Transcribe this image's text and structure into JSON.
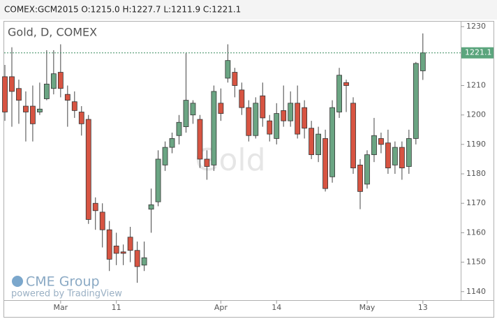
{
  "chart_data": {
    "type": "candlestick",
    "ohlc_header": "COMEX:GCM2015 O:1215.0 H:1227.7 L:1211.9 C:1221.1",
    "title": "Gold, D, COMEX",
    "watermark": "Gold",
    "logo_text": "CME Group",
    "powered_by": "powered by TradingView",
    "categories": [
      null,
      null,
      null,
      null,
      null,
      null,
      null,
      null,
      "Mar",
      null,
      null,
      null,
      null,
      null,
      null,
      null,
      "11",
      null,
      null,
      null,
      null,
      null,
      null,
      null,
      null,
      null,
      null,
      null,
      null,
      null,
      null,
      "Apr",
      null,
      null,
      null,
      null,
      null,
      null,
      null,
      "14",
      null,
      null,
      null,
      null,
      null,
      null,
      null,
      null,
      null,
      null,
      null,
      null,
      "May",
      null,
      null,
      null,
      null,
      null,
      null,
      null,
      "13"
    ],
    "open": [
      1213,
      1213,
      1209,
      1203,
      1203,
      1201,
      1205.5,
      1209,
      1214.5,
      1207,
      1204.5,
      1201,
      1198.5,
      1170,
      1167,
      1161,
      1155.5,
      1153.5,
      1158.5,
      1154,
      1149,
      1168,
      1170.5,
      1183,
      1189,
      1193,
      1196,
      1200,
      1198.5,
      1185,
      1183,
      1204,
      1212.5,
      1214.5,
      1208.5,
      1202.5,
      1193,
      1206.5,
      1198,
      1192,
      1201.5,
      1198,
      1204,
      1202.5,
      1195.5,
      1186.5,
      1192,
      1179,
      1201,
      1211,
      1204,
      1183,
      1176.5,
      1186.5,
      1192,
      1190.5,
      1183,
      1189,
      1182.5,
      1192,
      1215
    ],
    "high": [
      1217,
      1223,
      1212,
      1208,
      1210,
      1211,
      1222,
      1222,
      1224,
      1210,
      1208,
      1203,
      1200,
      1172,
      1170,
      1164,
      1160,
      1156,
      1162,
      1157,
      1157,
      1175,
      1188,
      1191,
      1194,
      1200,
      1221,
      1205,
      1200,
      1188,
      1210,
      1209,
      1224,
      1216,
      1211,
      1205,
      1206,
      1211,
      1200,
      1204,
      1210,
      1208,
      1210,
      1205,
      1198,
      1196,
      1195,
      1205,
      1216,
      1212,
      1206,
      1185,
      1188,
      1199,
      1194,
      1195,
      1191,
      1191,
      1195,
      1218,
      1227.7
    ],
    "low": [
      1198,
      1196,
      1197,
      1191,
      1191,
      1200,
      1205,
      1207,
      1206,
      1196,
      1199,
      1193,
      1163,
      1161,
      1155,
      1147,
      1149,
      1149,
      1150,
      1143,
      1147,
      1160,
      1169,
      1181,
      1187,
      1190,
      1194,
      1197,
      1182,
      1178,
      1181,
      1198,
      1211,
      1206,
      1200,
      1191,
      1192,
      1196,
      1191,
      1190,
      1196,
      1196,
      1192,
      1192,
      1185,
      1184,
      1174,
      1177,
      1199,
      1201,
      1180,
      1168,
      1175,
      1184,
      1187,
      1180,
      1180,
      1178,
      1180,
      1190,
      1211.9
    ],
    "close": [
      1201,
      1208,
      1205,
      1201,
      1197,
      1202,
      1210.5,
      1214,
      1209,
      1205,
      1201.5,
      1197,
      1164.5,
      1167.5,
      1161,
      1151,
      1153,
      1153,
      1154,
      1148.5,
      1151.5,
      1169.5,
      1185,
      1189,
      1192,
      1197.5,
      1205,
      1204,
      1185,
      1182.5,
      1208,
      1200.5,
      1218.5,
      1210,
      1202.5,
      1193,
      1204,
      1199,
      1193.5,
      1200.5,
      1198,
      1204,
      1193.5,
      1195.5,
      1186.5,
      1193.5,
      1175,
      1202.5,
      1213.5,
      1210,
      1182,
      1174,
      1186.5,
      1193,
      1190,
      1182,
      1189,
      1182,
      1192,
      1217.5,
      1221.1
    ],
    "up_color": "#6ba583",
    "down_color": "#d75442",
    "last_price": 1221.1,
    "ylim": [
      1137.1,
      1231.7
    ],
    "yticks": [
      1140,
      1150,
      1160,
      1170,
      1180,
      1190,
      1200,
      1210,
      1220,
      1230
    ]
  }
}
